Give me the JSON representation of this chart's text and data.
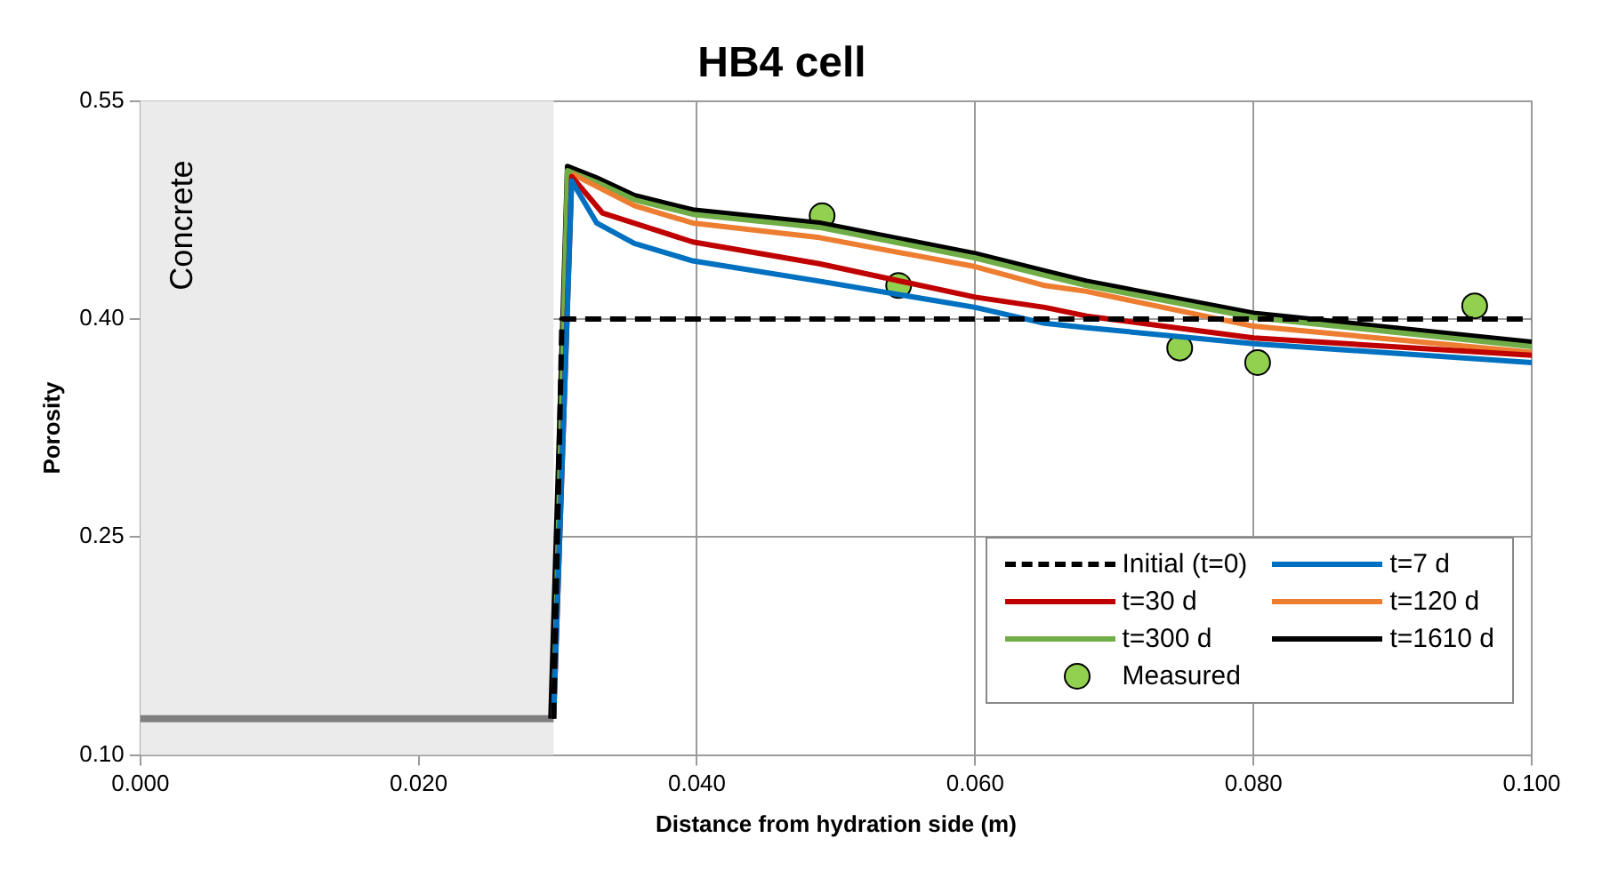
{
  "chart_data": {
    "type": "line",
    "title": "HB4 cell",
    "xlabel": "Distance from hydration side (m)",
    "ylabel": "Porosity",
    "xlim": [
      0,
      0.1
    ],
    "xticks": [
      {
        "value": 0,
        "label": "0.000"
      },
      {
        "value": 0.02,
        "label": "0.020"
      },
      {
        "value": 0.04,
        "label": "0.040"
      },
      {
        "value": 0.06,
        "label": "0.060"
      },
      {
        "value": 0.08,
        "label": "0.080"
      },
      {
        "value": 0.1,
        "label": "0.100"
      }
    ],
    "ylim": [
      0.1,
      0.55
    ],
    "yticks": [
      {
        "value": 0.1,
        "label": "0.10"
      },
      {
        "value": 0.25,
        "label": "0.25"
      },
      {
        "value": 0.4,
        "label": "0.40"
      },
      {
        "value": 0.55,
        "label": "0.55"
      }
    ],
    "grid": true,
    "legend": "bottom right",
    "marker": "none",
    "bands": [
      {
        "axis": "x",
        "from": 0,
        "to": 0.0297,
        "label": "Concrete",
        "color": "#ebebeb"
      }
    ],
    "series": [
      {
        "name": "Initial (t=0)",
        "color": "#000000",
        "line_style": "dashed",
        "x": [
          0.0297,
          0.0303,
          0.1
        ],
        "values": [
          0.125,
          0.4,
          0.4
        ]
      },
      {
        "name": "t=7 d",
        "color": "#0070c0",
        "x": [
          0.0297,
          0.031,
          0.0328,
          0.0355,
          0.0397,
          0.0488,
          0.06,
          0.065,
          0.068,
          0.08,
          0.1
        ],
        "values": [
          0.125,
          0.495,
          0.466,
          0.452,
          0.44,
          0.426,
          0.408,
          0.397,
          0.394,
          0.383,
          0.37
        ]
      },
      {
        "name": "t=30 d",
        "color": "#c00000",
        "x": [
          0.0297,
          0.031,
          0.0332,
          0.0397,
          0.0488,
          0.06,
          0.065,
          0.068,
          0.08,
          0.1
        ],
        "values": [
          0.125,
          0.498,
          0.473,
          0.453,
          0.438,
          0.415,
          0.408,
          0.402,
          0.387,
          0.375
        ]
      },
      {
        "name": "t=120 d",
        "color": "#ed7d31",
        "x": [
          0.031,
          0.0355,
          0.0397,
          0.0488,
          0.06,
          0.065,
          0.068,
          0.08,
          0.1
        ],
        "values": [
          0.5,
          0.478,
          0.466,
          0.456,
          0.436,
          0.423,
          0.419,
          0.395,
          0.377
        ]
      },
      {
        "name": "t=300 d",
        "color": "#70ad47",
        "x": [
          0.0297,
          0.0307,
          0.0328,
          0.0355,
          0.0397,
          0.0488,
          0.06,
          0.065,
          0.068,
          0.08,
          0.1
        ],
        "values": [
          0.125,
          0.502,
          0.494,
          0.482,
          0.472,
          0.463,
          0.442,
          0.43,
          0.423,
          0.401,
          0.381
        ]
      },
      {
        "name": "t=1610 d",
        "color": "#000000",
        "x": [
          0.0295,
          0.0307,
          0.0328,
          0.0355,
          0.0397,
          0.0488,
          0.06,
          0.065,
          0.068,
          0.08,
          0.1
        ],
        "values": [
          0.125,
          0.505,
          0.497,
          0.485,
          0.475,
          0.466,
          0.445,
          0.433,
          0.426,
          0.404,
          0.384
        ]
      },
      {
        "color": "#7f7f7f",
        "x": [
          0,
          0.0297
        ],
        "values": [
          0.125,
          0.125
        ]
      },
      {
        "name": "Measured",
        "type": "scatter",
        "marker": "circle",
        "color": "#92d050",
        "x": [
          0.049,
          0.0545,
          0.0747,
          0.0803,
          0.0959
        ],
        "values": [
          0.471,
          0.423,
          0.38,
          0.37,
          0.409
        ]
      }
    ]
  }
}
